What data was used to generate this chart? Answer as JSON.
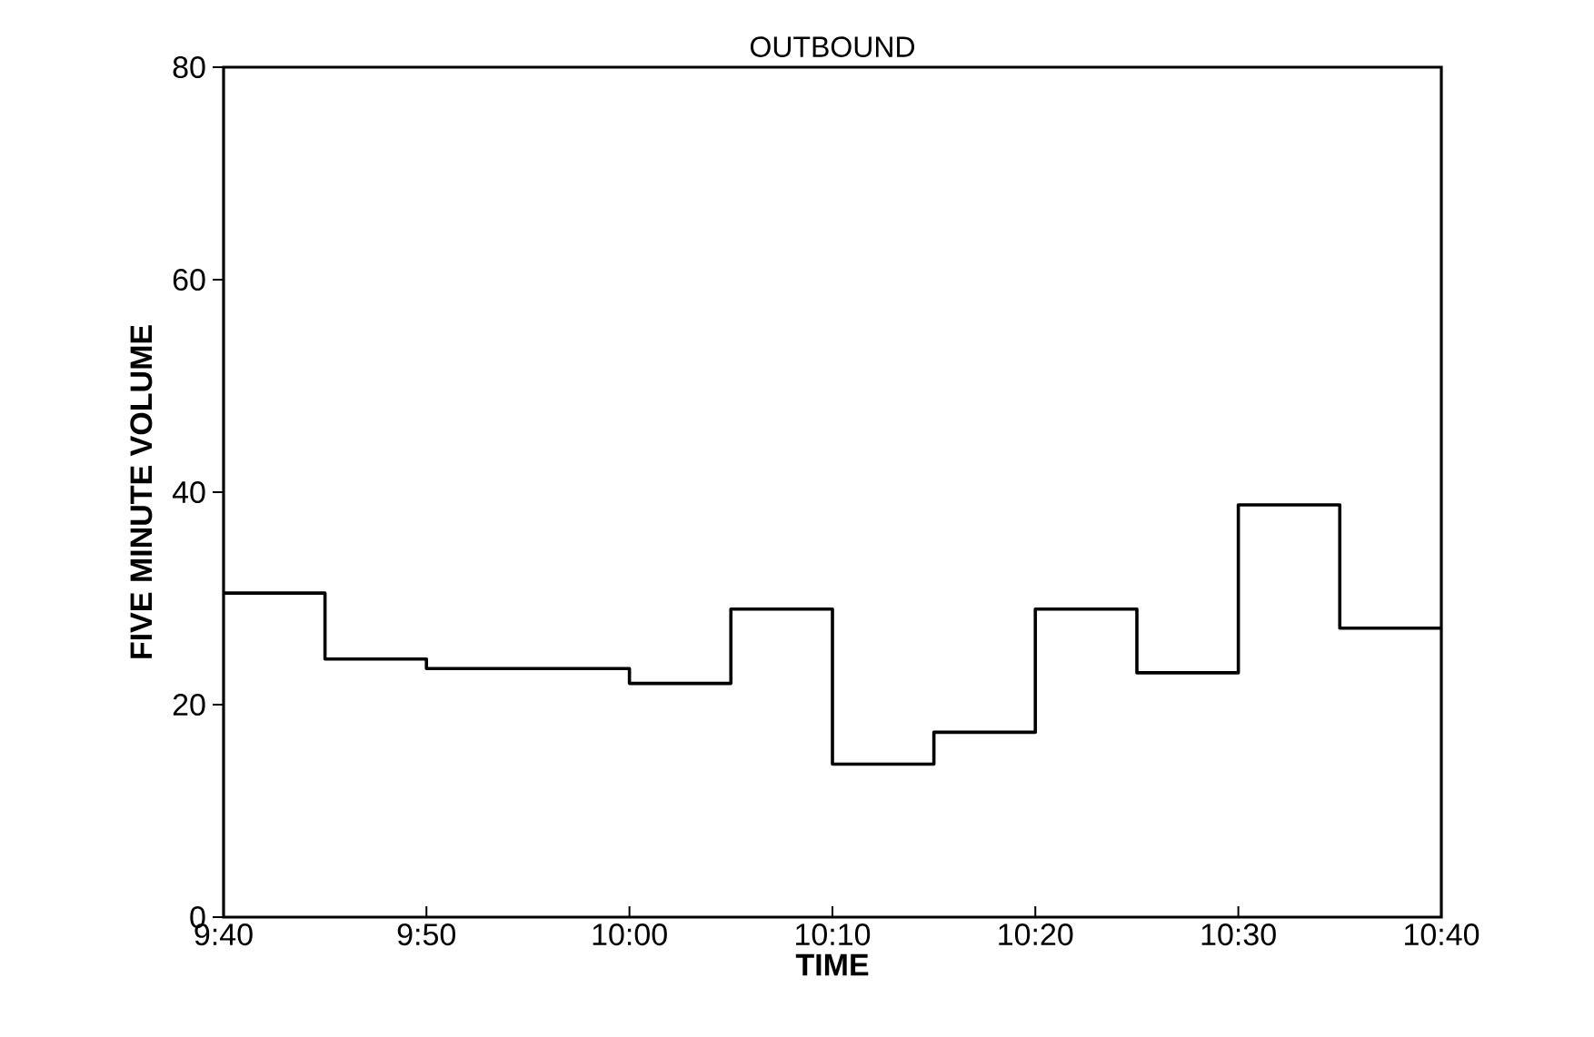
{
  "chart_data": {
    "type": "step",
    "title": "OUTBOUND",
    "xlabel": "TIME",
    "ylabel": "FIVE  MINUTE  VOLUME",
    "x": [
      9.6667,
      9.75,
      9.8333,
      9.9167,
      10.0,
      10.0833,
      10.1667,
      10.25,
      10.3333,
      10.4167,
      10.5,
      10.5833,
      10.6667
    ],
    "series": [
      {
        "color": "#000000",
        "values": [
          30.5,
          24.3,
          23.4,
          23.4,
          22,
          29,
          14.4,
          17.4,
          29,
          23,
          38.8,
          27.2,
          27.2
        ]
      }
    ],
    "xlim": [
      9.6667,
      10.6667
    ],
    "xticks": [
      {
        "value": 9.6667,
        "label": "9:40"
      },
      {
        "value": 9.8333,
        "label": "9:50"
      },
      {
        "value": 10.0,
        "label": "10:00"
      },
      {
        "value": 10.1667,
        "label": "10:10"
      },
      {
        "value": 10.3333,
        "label": "10:20"
      },
      {
        "value": 10.5,
        "label": "10:30"
      },
      {
        "value": 10.6667,
        "label": "10:40"
      }
    ],
    "ylim": [
      0,
      80
    ],
    "yticks": [
      0,
      20,
      40,
      60,
      80
    ]
  }
}
